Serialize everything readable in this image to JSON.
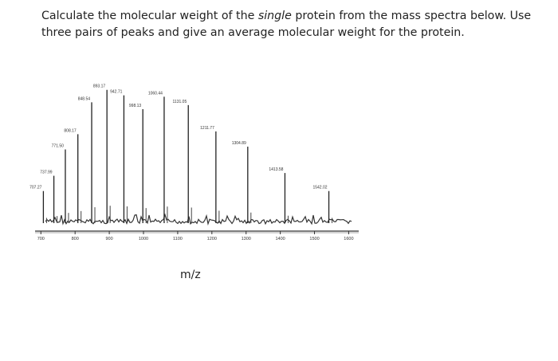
{
  "question": {
    "part1": "Calculate the molecular weight of the",
    "emph": "single",
    "part2": "protein from the mass spectra below. Use three pairs of peaks and give an average molecular weight for the protein."
  },
  "chart_data": {
    "type": "bar",
    "xlabel": "m/z",
    "ylabel": "",
    "xlim": [
      690,
      1620
    ],
    "ylim": [
      0,
      100
    ],
    "x_ticks": [
      "700",
      "800",
      "900",
      "1000",
      "1100",
      "1200",
      "1300",
      "1400",
      "1500",
      "1600"
    ],
    "peaks": [
      {
        "x": 707.27,
        "label": "707.27",
        "y": 22
      },
      {
        "x": 737.99,
        "label": "737.99",
        "y": 33
      },
      {
        "x": 771.5,
        "label": "771.50",
        "y": 52
      },
      {
        "x": 808.17,
        "label": "808.17",
        "y": 63
      },
      {
        "x": 848.54,
        "label": "848.54",
        "y": 86
      },
      {
        "x": 893.17,
        "label": "893.17",
        "y": 95
      },
      {
        "x": 942.71,
        "label": "942.71",
        "y": 91
      },
      {
        "x": 998.13,
        "label": "998.13",
        "y": 81
      },
      {
        "x": 1060.44,
        "label": "1060.44",
        "y": 90
      },
      {
        "x": 1131.05,
        "label": "1131.05",
        "y": 84
      },
      {
        "x": 1211.77,
        "label": "1211.77",
        "y": 65
      },
      {
        "x": 1304.89,
        "label": "1304.89",
        "y": 54
      },
      {
        "x": 1413.58,
        "label": "1413.58",
        "y": 35
      },
      {
        "x": 1542.02,
        "label": "1542.02",
        "y": 22
      }
    ]
  }
}
